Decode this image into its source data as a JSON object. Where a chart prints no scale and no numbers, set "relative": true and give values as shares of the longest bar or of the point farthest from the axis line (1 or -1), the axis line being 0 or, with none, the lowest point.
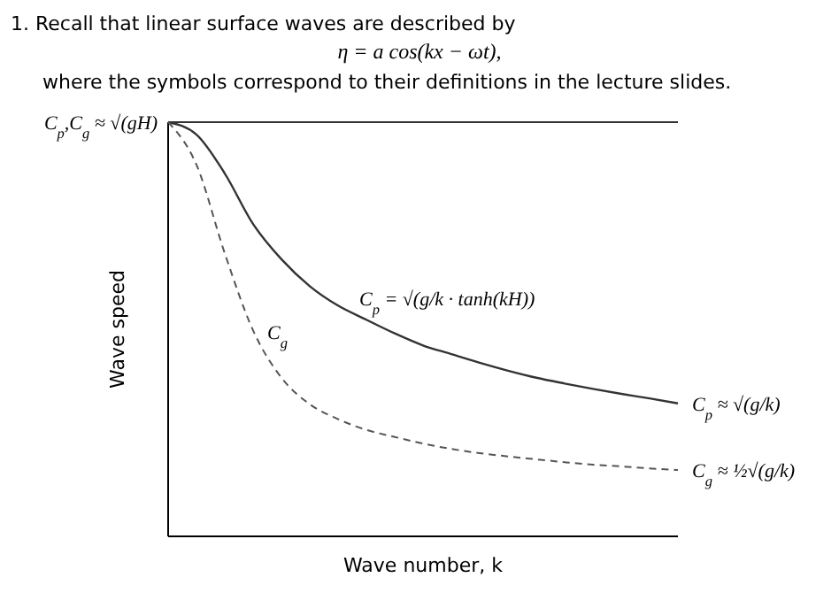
{
  "chart_data": {
    "type": "line",
    "title": "1. Recall that linear surface waves are described by",
    "subtitle": "η = a cos(kx − ωt),",
    "xlabel": "Wave number, k",
    "ylabel": "Wave speed",
    "relative": true,
    "legend": false,
    "categories": [
      null,
      null,
      null,
      null,
      null,
      null,
      null,
      null,
      null,
      null,
      null,
      null,
      null,
      null,
      null,
      null,
      null,
      null,
      null
    ],
    "series": [
      {
        "name": "C$_{p}$ = √(g/k · tanh(kH))",
        "color": "#333333",
        "line_style": "solid",
        "values": [
          1.0,
          0.97,
          0.876,
          0.754,
          0.669,
          0.604,
          0.557,
          0.523,
          0.49,
          0.461,
          0.44,
          0.419,
          0.4,
          0.383,
          0.369,
          0.356,
          0.344,
          0.333,
          0.321
        ]
      },
      {
        "name": "C$_{g}$",
        "color": "#555555",
        "line_style": "dashed",
        "values": [
          1.0,
          0.897,
          0.683,
          0.497,
          0.383,
          0.319,
          0.283,
          0.257,
          0.24,
          0.224,
          0.211,
          0.201,
          0.193,
          0.186,
          0.179,
          0.173,
          0.169,
          0.164,
          0.16
        ]
      }
    ],
    "ref_lines": [
      {
        "axis": "y",
        "value": 1,
        "label": "C$_{p}$,C$_{g}$ ≈ √(gH)",
        "color": "#333333",
        "line_style": "solid"
      }
    ],
    "annotations": [
      "where the symbols correspond to their definitions in the lecture slides.",
      "C$_{p}$ ≈ √(g/k)",
      "C$_{g}$ ≈ ½√(g/k)"
    ]
  }
}
